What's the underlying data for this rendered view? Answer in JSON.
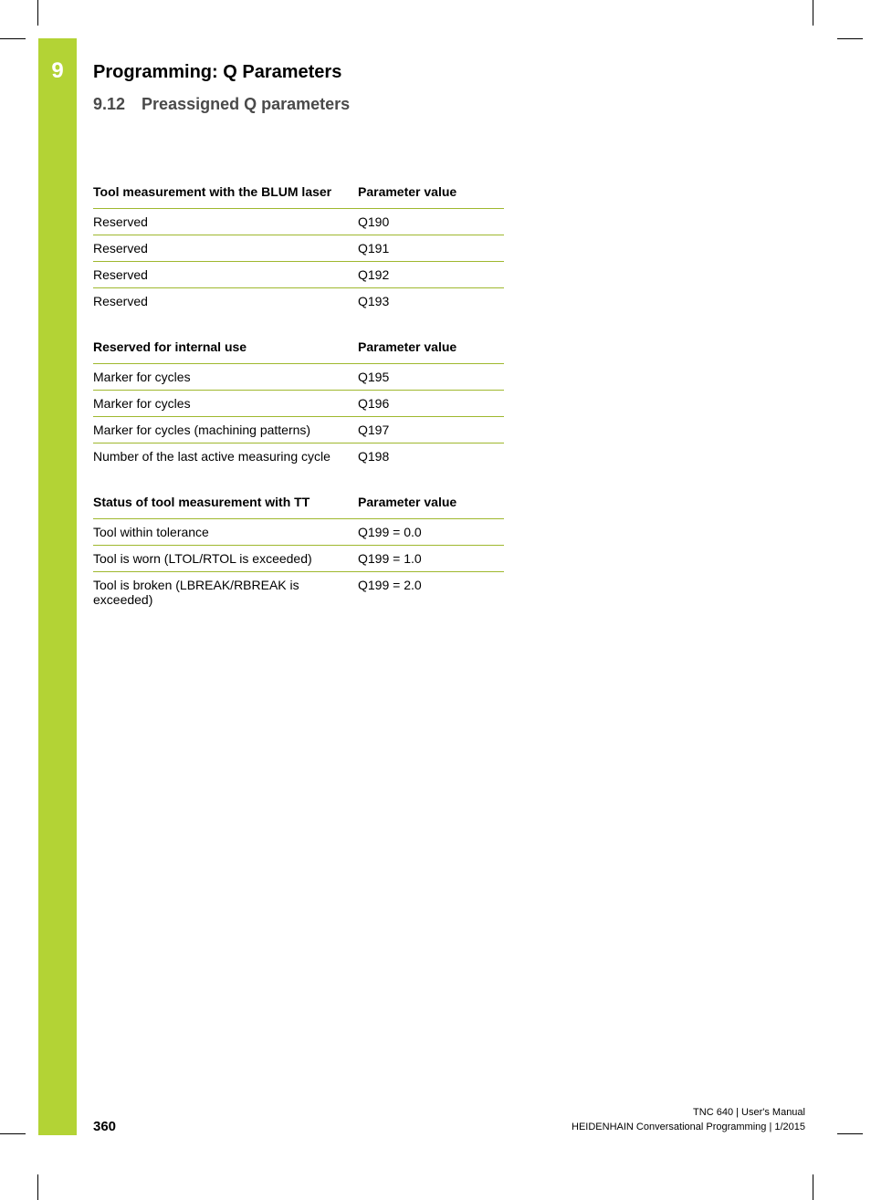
{
  "chapter": {
    "number": "9",
    "title": "Programming: Q Parameters"
  },
  "section": {
    "number": "9.12",
    "title": "Preassigned Q parameters"
  },
  "tables": [
    {
      "header_desc": "Tool measurement with the BLUM laser",
      "header_val": "Parameter value",
      "rows": [
        {
          "desc": "Reserved",
          "val": "Q190"
        },
        {
          "desc": "Reserved",
          "val": "Q191"
        },
        {
          "desc": "Reserved",
          "val": "Q192"
        },
        {
          "desc": "Reserved",
          "val": "Q193"
        }
      ]
    },
    {
      "header_desc": "Reserved for internal use",
      "header_val": "Parameter value",
      "rows": [
        {
          "desc": "Marker for cycles",
          "val": "Q195"
        },
        {
          "desc": "Marker for cycles",
          "val": "Q196"
        },
        {
          "desc": "Marker for cycles (machining patterns)",
          "val": "Q197"
        },
        {
          "desc": "Number of the last active measuring cycle",
          "val": "Q198"
        }
      ]
    },
    {
      "header_desc": "Status of tool measurement with TT",
      "header_val": "Parameter value",
      "rows": [
        {
          "desc": "Tool within tolerance",
          "val": "Q199 = 0.0"
        },
        {
          "desc": "Tool is worn (LTOL/RTOL is exceeded)",
          "val": "Q199 = 1.0"
        },
        {
          "desc": "Tool is broken (LBREAK/RBREAK is exceeded)",
          "val": "Q199 = 2.0"
        }
      ]
    }
  ],
  "footer": {
    "page_number": "360",
    "line1": "TNC 640 | User's Manual",
    "line2": "HEIDENHAIN Conversational Programming | 1/2015"
  },
  "colors": {
    "sidebar_green": "#b3d335",
    "rule_green": "#9fb82e",
    "section_gray": "#4a4a4a"
  }
}
